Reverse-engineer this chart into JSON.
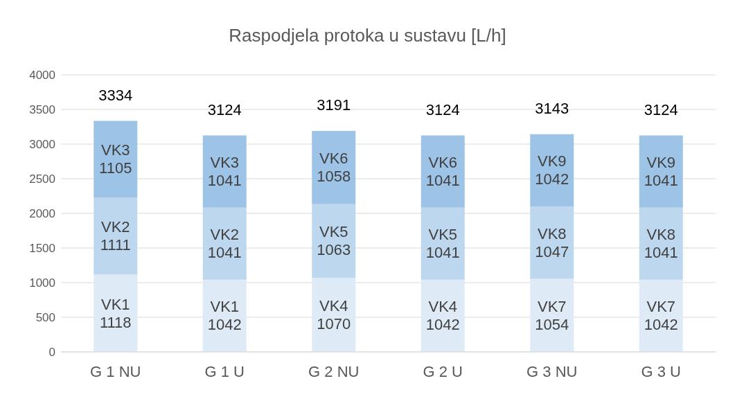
{
  "chart_data": {
    "type": "bar",
    "title": "Raspodjela protoka u sustavu [L/h]",
    "stacked": true,
    "categories": [
      "G 1 NU",
      "G 1 U",
      "G 2 NU",
      "G 2 U",
      "G 3 NU",
      "G 3 U"
    ],
    "series": [
      {
        "color": "#deebf7",
        "values": [
          1118,
          1042,
          1070,
          1042,
          1054,
          1042
        ],
        "value_labels": [
          "VK1\n1118",
          "VK1\n1042",
          "VK4\n1070",
          "VK4\n1042",
          "VK7\n1054",
          "VK7\n1042"
        ]
      },
      {
        "color": "#bdd7ee",
        "values": [
          1111,
          1041,
          1063,
          1041,
          1047,
          1041
        ],
        "value_labels": [
          "VK2\n1111",
          "VK2\n1041",
          "VK5\n1063",
          "VK5\n1041",
          "VK8\n1047",
          "VK8\n1041"
        ]
      },
      {
        "color": "#9dc3e6",
        "values": [
          1105,
          1041,
          1058,
          1041,
          1042,
          1041
        ],
        "value_labels": [
          "VK3\n1105",
          "VK3\n1041",
          "VK6\n1058",
          "VK6\n1041",
          "VK9\n1042",
          "VK9\n1041"
        ]
      }
    ],
    "totals": [
      "3334",
      "3124",
      "3191",
      "3124",
      "3143",
      "3124"
    ],
    "ylim": [
      0,
      4000
    ],
    "yticks": [
      0,
      500,
      1000,
      1500,
      2000,
      2500,
      3000,
      3500,
      4000
    ],
    "grid": "y",
    "legend": false
  }
}
